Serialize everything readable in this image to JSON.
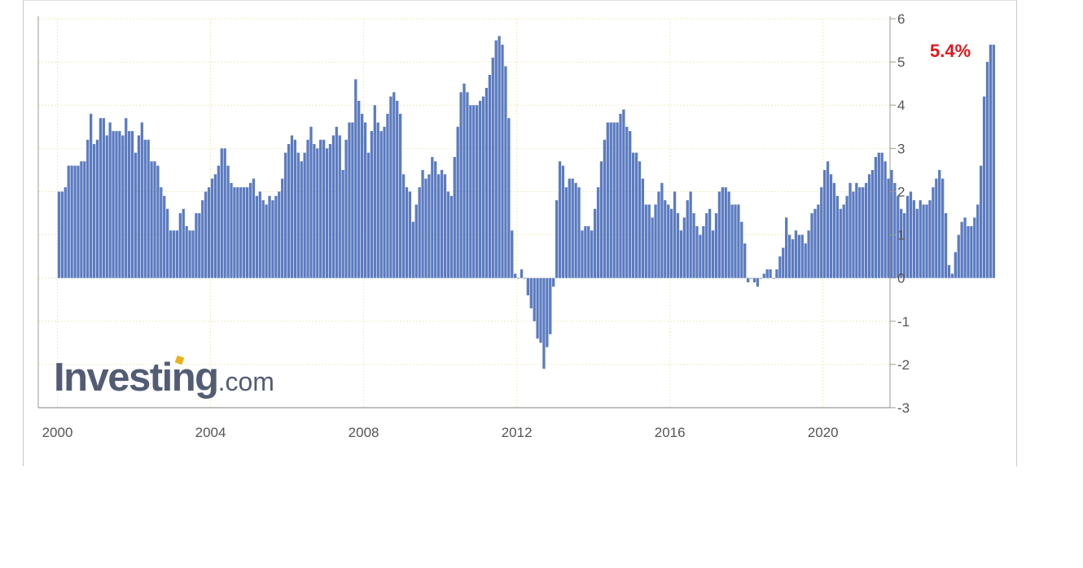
{
  "badge": {
    "text": "5.4%",
    "color": "#e1151b"
  },
  "watermark": {
    "main": "Investing",
    "tld": ".com",
    "accent_color": "#e8b21c"
  },
  "colors": {
    "bar": "#5b7bc0",
    "grid": "#f2ecc0",
    "axis": "#999999",
    "tick_text": "#555555"
  },
  "chart_data": {
    "type": "bar",
    "title": "",
    "xlabel": "",
    "ylabel": "",
    "ylim": [
      -3,
      6
    ],
    "xlim": [
      1999.5,
      2021.75
    ],
    "y_ticks": [
      6,
      5,
      4,
      3,
      2,
      1,
      0,
      -1,
      -2,
      -3
    ],
    "x_ticks": [
      2000,
      2004,
      2008,
      2012,
      2016,
      2020
    ],
    "y_axis_side": "right",
    "grid": true,
    "x_start": "2000-01",
    "frequency": "monthly",
    "values": [
      2.0,
      2.0,
      2.1,
      2.6,
      2.6,
      2.6,
      2.6,
      2.7,
      2.7,
      3.2,
      3.8,
      3.1,
      3.2,
      3.7,
      3.7,
      3.3,
      3.6,
      3.4,
      3.4,
      3.4,
      3.3,
      3.7,
      3.4,
      3.4,
      2.9,
      3.3,
      3.6,
      3.2,
      3.2,
      2.7,
      2.7,
      2.6,
      2.1,
      1.9,
      1.6,
      1.1,
      1.1,
      1.1,
      1.5,
      1.6,
      1.2,
      1.1,
      1.1,
      1.5,
      1.5,
      1.8,
      2.0,
      2.1,
      2.3,
      2.4,
      2.6,
      3.0,
      3.0,
      2.6,
      2.2,
      2.1,
      2.1,
      2.1,
      2.1,
      2.1,
      2.2,
      2.3,
      1.9,
      2.0,
      1.8,
      1.7,
      1.9,
      1.8,
      1.9,
      2.0,
      2.3,
      2.9,
      3.1,
      3.3,
      3.2,
      2.9,
      2.7,
      2.9,
      3.2,
      3.5,
      3.1,
      3.0,
      3.2,
      3.2,
      3.0,
      3.1,
      3.3,
      3.5,
      3.3,
      2.5,
      3.2,
      3.6,
      3.6,
      4.6,
      4.1,
      3.8,
      3.6,
      2.9,
      3.4,
      4.0,
      3.6,
      3.4,
      3.5,
      3.8,
      4.2,
      4.3,
      4.1,
      3.8,
      2.4,
      2.1,
      2.0,
      1.3,
      1.7,
      2.1,
      2.5,
      2.3,
      2.4,
      2.8,
      2.7,
      2.4,
      2.5,
      2.4,
      2.0,
      1.9,
      2.8,
      3.5,
      4.3,
      4.5,
      4.3,
      4.0,
      4.0,
      4.0,
      4.1,
      4.2,
      4.4,
      4.7,
      5.1,
      5.5,
      5.6,
      5.4,
      4.9,
      3.7,
      1.1,
      0.1,
      0.0,
      0.2,
      0.0,
      -0.4,
      -0.7,
      -1.0,
      -1.4,
      -1.5,
      -2.1,
      -1.6,
      -1.3,
      -0.2,
      1.8,
      2.7,
      2.6,
      2.1,
      2.3,
      2.3,
      2.2,
      2.1,
      1.1,
      1.2,
      1.2,
      1.1,
      1.6,
      2.1,
      2.7,
      3.2,
      3.6,
      3.6,
      3.6,
      3.6,
      3.8,
      3.9,
      3.5,
      3.4,
      2.9,
      2.9,
      2.7,
      2.3,
      1.7,
      1.7,
      1.4,
      1.7,
      2.0,
      2.2,
      1.8,
      1.7,
      1.6,
      2.0,
      1.5,
      1.1,
      1.4,
      1.8,
      2.0,
      1.5,
      1.2,
      1.0,
      1.2,
      1.5,
      1.6,
      1.1,
      1.5,
      2.0,
      2.1,
      2.1,
      2.0,
      1.7,
      1.7,
      1.7,
      1.3,
      0.8,
      -0.1,
      0.0,
      -0.1,
      -0.2,
      0.0,
      0.1,
      0.2,
      0.2,
      0.0,
      0.2,
      0.5,
      0.7,
      1.4,
      1.0,
      0.9,
      1.1,
      1.0,
      1.0,
      0.8,
      1.1,
      1.5,
      1.6,
      1.7,
      2.1,
      2.5,
      2.7,
      2.4,
      2.2,
      1.9,
      1.6,
      1.7,
      1.9,
      2.2,
      2.0,
      2.2,
      2.1,
      2.1,
      2.2,
      2.4,
      2.5,
      2.8,
      2.9,
      2.9,
      2.7,
      2.3,
      2.5,
      2.2,
      1.9,
      1.6,
      1.5,
      1.9,
      2.0,
      1.8,
      1.6,
      1.8,
      1.7,
      1.7,
      1.8,
      2.1,
      2.3,
      2.5,
      2.3,
      1.5,
      0.3,
      0.1,
      0.6,
      1.0,
      1.3,
      1.4,
      1.2,
      1.2,
      1.4,
      1.7,
      2.6,
      4.2,
      5.0,
      5.4,
      5.4
    ]
  }
}
